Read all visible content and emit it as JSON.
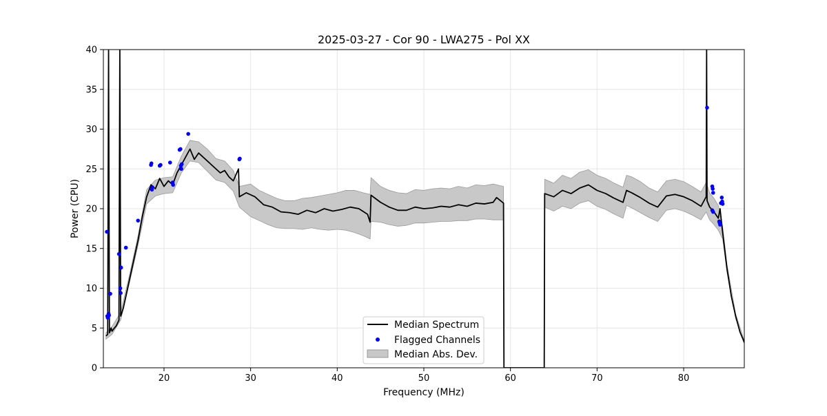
{
  "chart_data": {
    "type": "line",
    "title": "2025-03-27 - Cor 90 - LWA275 - Pol XX",
    "xlabel": "Frequency (MHz)",
    "ylabel": "Power (CPU)",
    "xlim": [
      13.0,
      87.0
    ],
    "ylim": [
      0,
      40
    ],
    "xticks": [
      20,
      30,
      40,
      50,
      60,
      70,
      80
    ],
    "xtick_labels": [
      "20",
      "30",
      "40",
      "50",
      "60",
      "70",
      "80"
    ],
    "yticks": [
      0,
      5,
      10,
      15,
      20,
      25,
      30,
      35,
      40
    ],
    "ytick_labels": [
      "0",
      "5",
      "10",
      "15",
      "20",
      "25",
      "30",
      "35",
      "40"
    ],
    "grid": true,
    "legend_position": "lower-center",
    "colors": {
      "median": "#000000",
      "flagged": "#0000ff",
      "mad_fill": "#c8c8c8",
      "mad_edge": "#999999"
    },
    "series": [
      {
        "name": "Median Spectrum",
        "kind": "line",
        "points": [
          [
            13.3,
            4.0
          ],
          [
            13.5,
            4.2
          ],
          [
            13.6,
            40.0
          ],
          [
            13.7,
            4.4
          ],
          [
            13.9,
            5.0
          ],
          [
            14.0,
            4.6
          ],
          [
            14.2,
            4.9
          ],
          [
            14.5,
            5.3
          ],
          [
            14.8,
            6.0
          ],
          [
            14.9,
            40.0
          ],
          [
            15.0,
            6.5
          ],
          [
            15.3,
            7.5
          ],
          [
            15.6,
            9.0
          ],
          [
            16.0,
            11.0
          ],
          [
            16.5,
            13.5
          ],
          [
            17.0,
            16.0
          ],
          [
            17.5,
            19.0
          ],
          [
            18.0,
            21.5
          ],
          [
            18.5,
            23.0
          ],
          [
            19.0,
            22.5
          ],
          [
            19.5,
            23.8
          ],
          [
            20.0,
            22.8
          ],
          [
            20.5,
            23.5
          ],
          [
            21.0,
            23.0
          ],
          [
            21.5,
            24.5
          ],
          [
            22.0,
            25.5
          ],
          [
            22.5,
            26.5
          ],
          [
            23.0,
            27.5
          ],
          [
            23.5,
            26.2
          ],
          [
            24.0,
            27.0
          ],
          [
            24.5,
            26.5
          ],
          [
            25.0,
            26.0
          ],
          [
            25.5,
            25.5
          ],
          [
            26.0,
            25.0
          ],
          [
            26.5,
            24.5
          ],
          [
            27.0,
            24.8
          ],
          [
            27.5,
            24.0
          ],
          [
            28.0,
            23.5
          ],
          [
            28.6,
            25.0
          ],
          [
            28.7,
            21.5
          ],
          [
            29.5,
            22.0
          ],
          [
            30.5,
            21.5
          ],
          [
            31.5,
            20.5
          ],
          [
            32.5,
            20.2
          ],
          [
            33.5,
            19.6
          ],
          [
            34.5,
            19.5
          ],
          [
            35.5,
            19.3
          ],
          [
            36.5,
            19.8
          ],
          [
            37.5,
            19.5
          ],
          [
            38.5,
            20.0
          ],
          [
            39.5,
            19.7
          ],
          [
            40.5,
            19.9
          ],
          [
            41.5,
            20.2
          ],
          [
            42.5,
            20.0
          ],
          [
            43.5,
            19.3
          ],
          [
            43.8,
            18.3
          ],
          [
            43.9,
            21.7
          ],
          [
            45.0,
            20.8
          ],
          [
            46.0,
            20.2
          ],
          [
            47.0,
            19.8
          ],
          [
            48.0,
            19.8
          ],
          [
            49.0,
            20.2
          ],
          [
            50.0,
            20.0
          ],
          [
            51.0,
            20.1
          ],
          [
            52.0,
            20.3
          ],
          [
            53.0,
            20.2
          ],
          [
            54.0,
            20.5
          ],
          [
            55.0,
            20.3
          ],
          [
            56.0,
            20.7
          ],
          [
            57.0,
            20.6
          ],
          [
            58.0,
            20.8
          ],
          [
            58.4,
            21.4
          ],
          [
            59.2,
            20.7
          ],
          [
            59.25,
            0.0
          ],
          [
            63.9,
            0.0
          ],
          [
            63.95,
            21.9
          ],
          [
            65.0,
            21.5
          ],
          [
            66.0,
            22.3
          ],
          [
            67.0,
            21.9
          ],
          [
            68.0,
            22.6
          ],
          [
            69.0,
            23.0
          ],
          [
            70.0,
            22.3
          ],
          [
            71.0,
            21.9
          ],
          [
            72.0,
            21.3
          ],
          [
            73.0,
            20.8
          ],
          [
            73.4,
            22.3
          ],
          [
            74.0,
            22.0
          ],
          [
            75.0,
            21.4
          ],
          [
            76.0,
            20.7
          ],
          [
            77.0,
            20.2
          ],
          [
            78.0,
            21.6
          ],
          [
            79.0,
            21.8
          ],
          [
            80.0,
            21.5
          ],
          [
            81.0,
            21.0
          ],
          [
            82.0,
            20.3
          ],
          [
            82.6,
            21.5
          ],
          [
            82.65,
            40.0
          ],
          [
            82.7,
            21.0
          ],
          [
            83.0,
            20.2
          ],
          [
            83.5,
            19.6
          ],
          [
            84.0,
            18.8
          ],
          [
            84.2,
            20.0
          ],
          [
            84.5,
            17.0
          ],
          [
            85.0,
            12.5
          ],
          [
            85.5,
            9.0
          ],
          [
            86.0,
            6.5
          ],
          [
            86.5,
            4.5
          ],
          [
            87.0,
            3.2
          ]
        ]
      },
      {
        "name": "Flagged Channels",
        "kind": "scatter",
        "points": [
          [
            13.4,
            17.1
          ],
          [
            13.45,
            6.5
          ],
          [
            13.5,
            6.3
          ],
          [
            13.6,
            6.8
          ],
          [
            13.65,
            6.6
          ],
          [
            13.8,
            9.3
          ],
          [
            14.8,
            14.3
          ],
          [
            14.95,
            10.0
          ],
          [
            15.0,
            9.4
          ],
          [
            15.05,
            12.6
          ],
          [
            15.6,
            15.1
          ],
          [
            17.0,
            18.5
          ],
          [
            18.5,
            25.5
          ],
          [
            18.55,
            25.7
          ],
          [
            18.6,
            22.4
          ],
          [
            18.65,
            22.7
          ],
          [
            19.5,
            25.4
          ],
          [
            19.6,
            25.5
          ],
          [
            20.7,
            25.8
          ],
          [
            21.0,
            23.3
          ],
          [
            21.05,
            23.0
          ],
          [
            21.8,
            27.4
          ],
          [
            21.9,
            27.5
          ],
          [
            21.95,
            25.4
          ],
          [
            22.0,
            25.0
          ],
          [
            22.05,
            25.6
          ],
          [
            22.8,
            29.4
          ],
          [
            28.7,
            26.2
          ],
          [
            28.75,
            26.3
          ],
          [
            82.7,
            32.7
          ],
          [
            83.3,
            22.8
          ],
          [
            83.35,
            22.5
          ],
          [
            83.4,
            22.0
          ],
          [
            83.3,
            19.8
          ],
          [
            83.4,
            19.6
          ],
          [
            84.1,
            18.4
          ],
          [
            84.15,
            18.2
          ],
          [
            84.2,
            18.0
          ],
          [
            84.3,
            20.7
          ],
          [
            84.4,
            21.4
          ],
          [
            84.45,
            20.9
          ],
          [
            84.5,
            20.6
          ]
        ]
      },
      {
        "name": "Median Abs. Dev.",
        "kind": "band",
        "points": [
          [
            13.3,
            3.6,
            4.4
          ],
          [
            14.0,
            4.2,
            5.2
          ],
          [
            15.0,
            6.0,
            7.0
          ],
          [
            16.0,
            10.6,
            11.6
          ],
          [
            17.0,
            15.4,
            16.6
          ],
          [
            18.0,
            20.6,
            22.4
          ],
          [
            19.0,
            21.6,
            23.6
          ],
          [
            20.0,
            21.9,
            23.9
          ],
          [
            21.0,
            22.0,
            24.0
          ],
          [
            22.0,
            24.5,
            26.6
          ],
          [
            23.0,
            26.0,
            28.6
          ],
          [
            24.0,
            25.8,
            28.4
          ],
          [
            25.0,
            24.7,
            27.5
          ],
          [
            26.0,
            23.6,
            26.3
          ],
          [
            27.0,
            23.3,
            26.0
          ],
          [
            28.0,
            22.2,
            24.8
          ],
          [
            28.7,
            20.2,
            22.8
          ],
          [
            30.0,
            19.0,
            23.1
          ],
          [
            31.0,
            18.5,
            22.3
          ],
          [
            32.0,
            18.0,
            21.8
          ],
          [
            33.0,
            17.6,
            21.3
          ],
          [
            34.0,
            17.5,
            21.0
          ],
          [
            35.0,
            17.5,
            21.0
          ],
          [
            36.0,
            17.4,
            21.3
          ],
          [
            37.0,
            17.6,
            21.4
          ],
          [
            38.0,
            17.4,
            21.6
          ],
          [
            39.0,
            17.3,
            21.8
          ],
          [
            40.0,
            17.4,
            22.0
          ],
          [
            41.0,
            17.3,
            22.3
          ],
          [
            42.0,
            17.0,
            22.3
          ],
          [
            43.0,
            16.6,
            22.0
          ],
          [
            43.8,
            16.2,
            21.8
          ],
          [
            43.9,
            18.4,
            23.9
          ],
          [
            45.0,
            18.3,
            22.8
          ],
          [
            46.0,
            18.0,
            22.3
          ],
          [
            47.0,
            17.8,
            22.0
          ],
          [
            48.0,
            17.9,
            21.9
          ],
          [
            49.0,
            18.2,
            22.4
          ],
          [
            50.0,
            18.2,
            22.3
          ],
          [
            51.0,
            18.3,
            22.5
          ],
          [
            52.0,
            18.4,
            22.6
          ],
          [
            53.0,
            18.4,
            22.5
          ],
          [
            54.0,
            18.5,
            22.8
          ],
          [
            55.0,
            18.5,
            22.6
          ],
          [
            56.0,
            18.7,
            23.0
          ],
          [
            57.0,
            18.7,
            22.9
          ],
          [
            58.0,
            18.6,
            23.1
          ],
          [
            59.2,
            18.6,
            22.8
          ],
          [
            63.95,
            20.2,
            23.7
          ],
          [
            65.0,
            19.7,
            23.2
          ],
          [
            66.0,
            20.3,
            24.2
          ],
          [
            67.0,
            20.0,
            23.8
          ],
          [
            68.0,
            20.7,
            24.6
          ],
          [
            69.0,
            21.0,
            24.9
          ],
          [
            70.0,
            20.3,
            24.2
          ],
          [
            71.0,
            19.9,
            23.8
          ],
          [
            72.0,
            19.3,
            23.2
          ],
          [
            73.0,
            18.8,
            22.7
          ],
          [
            73.4,
            20.4,
            24.2
          ],
          [
            74.0,
            20.1,
            24.0
          ],
          [
            75.0,
            19.5,
            23.4
          ],
          [
            76.0,
            18.9,
            22.6
          ],
          [
            77.0,
            18.4,
            22.1
          ],
          [
            78.0,
            19.8,
            23.5
          ],
          [
            79.0,
            20.0,
            23.7
          ],
          [
            80.0,
            19.7,
            23.4
          ],
          [
            81.0,
            19.2,
            22.8
          ],
          [
            82.0,
            18.6,
            22.1
          ],
          [
            82.6,
            19.6,
            23.3
          ],
          [
            83.0,
            18.6,
            22.0
          ],
          [
            83.5,
            18.0,
            21.3
          ],
          [
            84.0,
            17.3,
            20.4
          ],
          [
            84.5,
            16.2,
            17.8
          ],
          [
            85.0,
            12.0,
            13.0
          ],
          [
            86.0,
            6.2,
            6.8
          ],
          [
            87.0,
            3.0,
            3.4
          ]
        ]
      }
    ],
    "legend": [
      "Median Spectrum",
      "Flagged Channels",
      "Median Abs. Dev."
    ]
  }
}
